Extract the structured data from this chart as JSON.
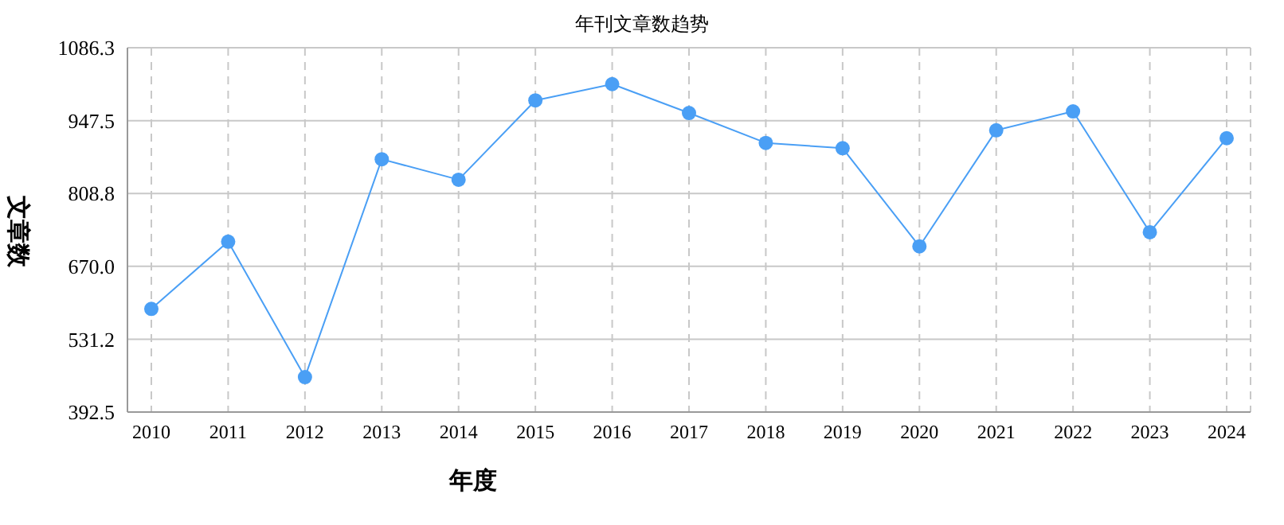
{
  "chart_data": {
    "type": "line",
    "title": "年刊文章数趋势",
    "xlabel": "年度",
    "ylabel": "文章数",
    "categories": [
      "2010",
      "2011",
      "2012",
      "2013",
      "2014",
      "2015",
      "2016",
      "2017",
      "2018",
      "2019",
      "2020",
      "2021",
      "2022",
      "2023",
      "2024"
    ],
    "series": [
      {
        "color": "#4a9ff5",
        "values": [
          589,
          717,
          459,
          874,
          835,
          986,
          1017,
          962,
          905,
          895,
          708,
          929,
          965,
          735,
          914
        ]
      }
    ],
    "ylim": [
      392.5,
      1086.3
    ],
    "yticks": [
      392.5,
      531.2,
      {
        "value": 670,
        "label": "670.0"
      },
      808.8,
      947.5,
      1086.3
    ],
    "grid": true,
    "marker": "circle",
    "line_style": "solid"
  }
}
